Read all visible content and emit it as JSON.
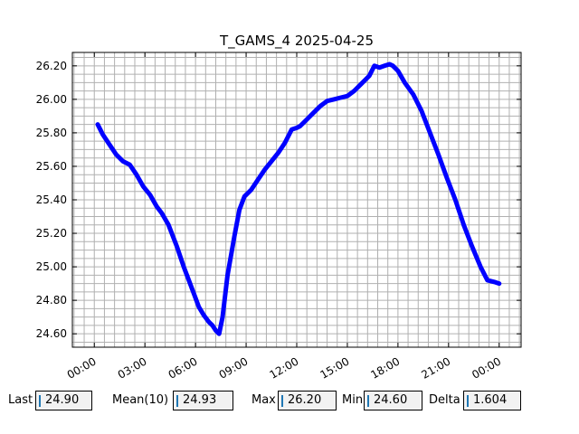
{
  "chart_data": {
    "type": "line",
    "title": "T_GAMS_4 2025-04-25",
    "xlabel": "",
    "ylabel": "",
    "x_ticks": [
      "00:00",
      "03:00",
      "06:00",
      "09:00",
      "12:00",
      "15:00",
      "18:00",
      "21:00",
      "00:00"
    ],
    "y_ticks": [
      "24.60",
      "24.80",
      "25.00",
      "25.20",
      "25.40",
      "25.60",
      "25.80",
      "26.00",
      "26.20"
    ],
    "xlim_hours": [
      -1.3,
      25.3
    ],
    "ylim": [
      24.52,
      26.28
    ],
    "grid": true,
    "series": [
      {
        "color": "#0000ff",
        "x_hours": [
          0.2,
          0.5,
          0.9,
          1.3,
          1.7,
          2.1,
          2.5,
          2.9,
          3.3,
          3.7,
          4.0,
          4.4,
          4.9,
          5.3,
          5.6,
          5.9,
          6.2,
          6.5,
          6.8,
          7.0,
          7.2,
          7.4,
          7.6,
          7.9,
          8.3,
          8.6,
          8.9,
          9.3,
          9.7,
          10.1,
          10.5,
          10.9,
          11.3,
          11.7,
          12.0,
          12.2,
          12.6,
          13.0,
          13.4,
          13.8,
          14.2,
          14.6,
          15.0,
          15.4,
          15.8,
          16.3,
          16.6,
          16.9,
          17.2,
          17.5,
          17.7,
          18.0,
          18.4,
          18.9,
          19.4,
          19.9,
          20.4,
          20.9,
          21.4,
          21.9,
          22.4,
          22.9,
          23.3,
          23.7,
          24.0
        ],
        "y": [
          25.85,
          25.79,
          25.73,
          25.67,
          25.63,
          25.61,
          25.55,
          25.48,
          25.43,
          25.36,
          25.32,
          25.25,
          25.12,
          25.0,
          24.92,
          24.84,
          24.76,
          24.71,
          24.67,
          24.65,
          24.62,
          24.6,
          24.7,
          24.95,
          25.18,
          25.34,
          25.42,
          25.46,
          25.52,
          25.58,
          25.63,
          25.68,
          25.74,
          25.82,
          25.83,
          25.84,
          25.88,
          25.92,
          25.96,
          25.99,
          26.0,
          26.01,
          26.02,
          26.05,
          26.09,
          26.14,
          26.2,
          26.19,
          26.2,
          26.21,
          26.2,
          26.17,
          26.1,
          26.03,
          25.93,
          25.8,
          25.67,
          25.53,
          25.4,
          25.25,
          25.12,
          25.0,
          24.92,
          24.91,
          24.9
        ]
      }
    ]
  },
  "stats": [
    {
      "label": "Last",
      "value": "24.90"
    },
    {
      "label": "Mean(10)",
      "value": "24.93"
    },
    {
      "label": "Max",
      "value": "26.20"
    },
    {
      "label": "Min",
      "value": "24.60"
    },
    {
      "label": "Delta",
      "value": "1.604"
    }
  ]
}
